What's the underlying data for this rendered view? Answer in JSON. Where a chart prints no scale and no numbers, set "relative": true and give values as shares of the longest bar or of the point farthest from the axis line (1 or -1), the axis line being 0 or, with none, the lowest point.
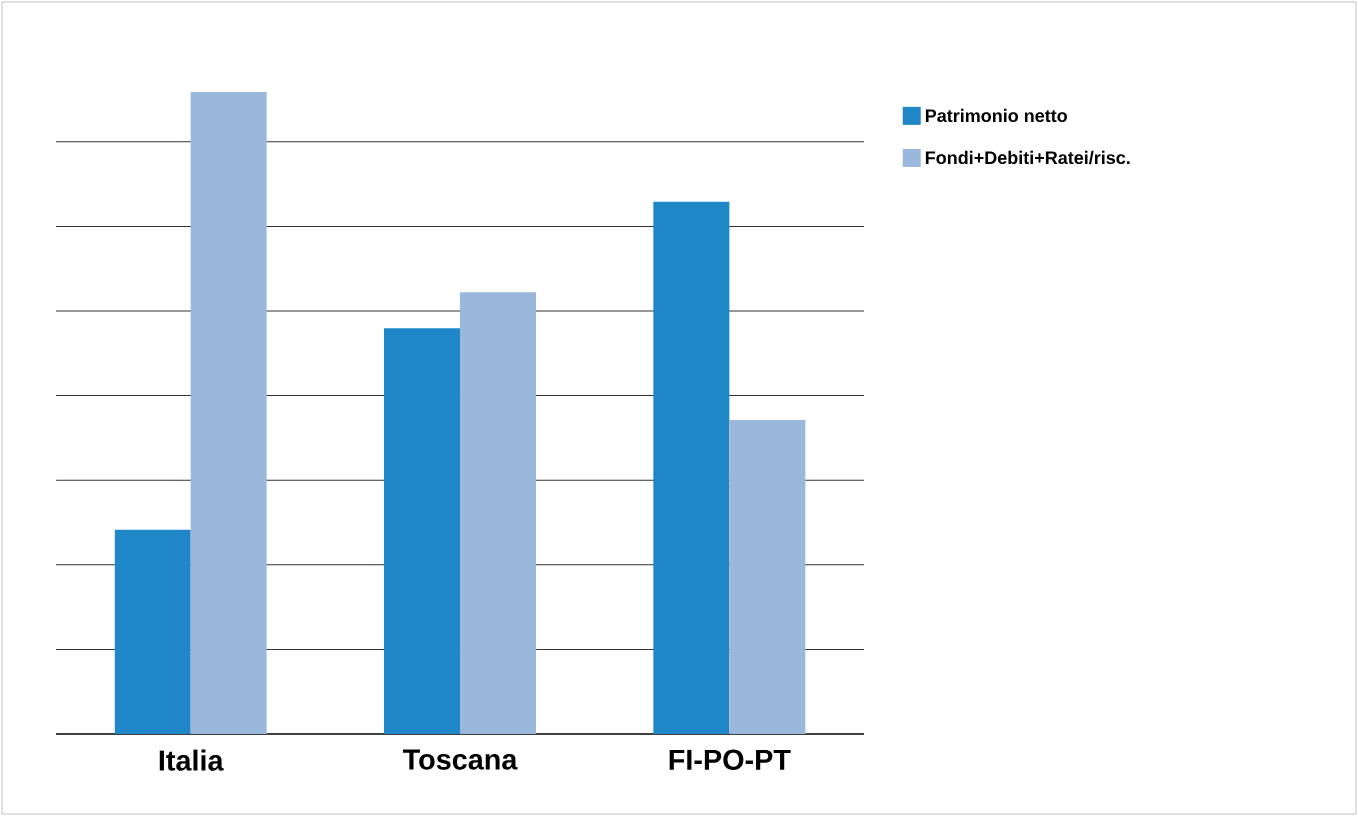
{
  "chart_data": {
    "type": "bar",
    "relative": true,
    "categories": [
      "Italia",
      "Toscana",
      "FI-PO-PT"
    ],
    "series": [
      {
        "name": "Patrimonio netto",
        "color": "#1f87c8",
        "values": [
          0.318,
          0.632,
          0.829
        ]
      },
      {
        "name": "Fondi+Debiti+Ratei/risc.",
        "color": "#9ab8dc",
        "values": [
          1,
          0.688,
          0.489
        ]
      }
    ],
    "grid": "y",
    "legend": "top right"
  }
}
